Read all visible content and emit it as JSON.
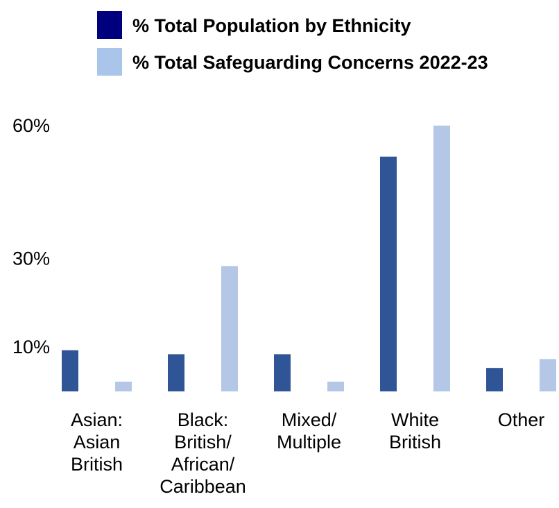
{
  "chart_data": {
    "type": "bar",
    "categories": [
      [
        "Asian:",
        "Asian",
        "British"
      ],
      [
        "Black:",
        "British/",
        "African/",
        "Caribbean"
      ],
      [
        "Mixed/",
        "Multiple"
      ],
      [
        "White",
        "British"
      ],
      [
        "Other"
      ]
    ],
    "series": [
      {
        "name": "% Total Population by Ethnicity",
        "color": "#2F5597",
        "values": [
          9.3,
          8.4,
          8.4,
          53,
          5.3
        ]
      },
      {
        "name": "% Total Safeguarding Concerns 2022-23",
        "color": "#B4C7E7",
        "values": [
          2.2,
          28.3,
          2.2,
          60,
          7.3
        ]
      }
    ],
    "y_ticks": [
      {
        "value": 10,
        "label": "10%"
      },
      {
        "value": 30,
        "label": "30%"
      },
      {
        "value": 60,
        "label": "60%"
      }
    ],
    "ylim": [
      0,
      60
    ],
    "legend_position": "top"
  },
  "legend": {
    "swatch_colors": [
      "#00007F",
      "#A9C6EA"
    ]
  }
}
